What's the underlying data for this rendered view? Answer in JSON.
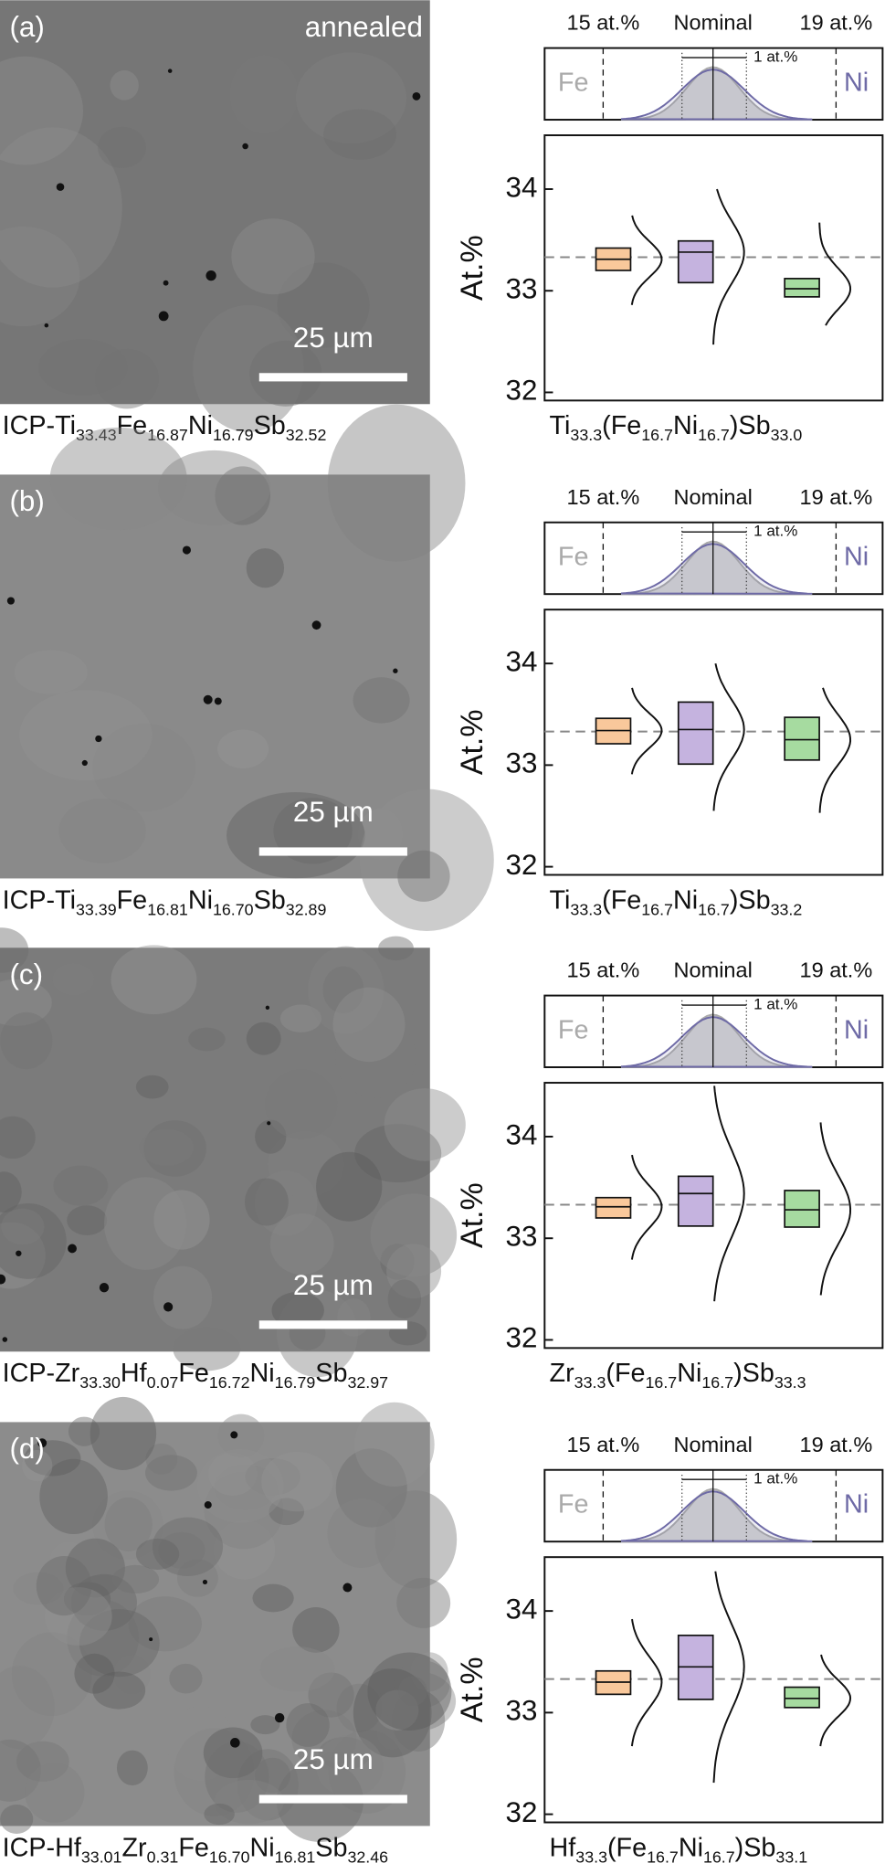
{
  "panels": [
    {
      "label": "(a)",
      "annotation": "annealed",
      "scale_bar": "25 µm",
      "icp_formula": [
        {
          "text": "ICP-Ti",
          "sub": "33.43"
        },
        {
          "text": "Fe",
          "sub": "16.87"
        },
        {
          "text": "Ni",
          "sub": "16.79"
        },
        {
          "text": "Sb",
          "sub": "32.52"
        }
      ],
      "nominal_formula": [
        {
          "text": "Ti",
          "sub": "33.3"
        },
        {
          "text": "(Fe",
          "sub": "16.7"
        },
        {
          "text": "Ni",
          "sub": "16.7"
        },
        {
          "text": ")Sb",
          "sub": "33.0"
        }
      ],
      "inset": {
        "left": "15 at.%",
        "center": "Nominal",
        "right": "19 at.%",
        "left_element": "Fe",
        "right_element": "Ni",
        "width_label": "1 at.%"
      }
    },
    {
      "label": "(b)",
      "scale_bar": "25 µm",
      "icp_formula": [
        {
          "text": "ICP-Ti",
          "sub": "33.39"
        },
        {
          "text": "Fe",
          "sub": "16.81"
        },
        {
          "text": "Ni",
          "sub": "16.70"
        },
        {
          "text": "Sb",
          "sub": "32.89"
        }
      ],
      "nominal_formula": [
        {
          "text": "Ti",
          "sub": "33.3"
        },
        {
          "text": "(Fe",
          "sub": "16.7"
        },
        {
          "text": "Ni",
          "sub": "16.7"
        },
        {
          "text": ")Sb",
          "sub": "33.2"
        }
      ],
      "inset": {
        "left": "15 at.%",
        "center": "Nominal",
        "right": "19 at.%",
        "left_element": "Fe",
        "right_element": "Ni",
        "width_label": "1 at.%"
      }
    },
    {
      "label": "(c)",
      "scale_bar": "25 µm",
      "icp_formula": [
        {
          "text": "ICP-Zr",
          "sub": "33.30"
        },
        {
          "text": "Hf",
          "sub": "0.07"
        },
        {
          "text": "Fe",
          "sub": "16.72"
        },
        {
          "text": "Ni",
          "sub": "16.79"
        },
        {
          "text": "Sb",
          "sub": "32.97"
        }
      ],
      "nominal_formula": [
        {
          "text": "Zr",
          "sub": "33.3"
        },
        {
          "text": "(Fe",
          "sub": "16.7"
        },
        {
          "text": "Ni",
          "sub": "16.7"
        },
        {
          "text": ")Sb",
          "sub": "33.3"
        }
      ],
      "inset": {
        "left": "15 at.%",
        "center": "Nominal",
        "right": "19 at.%",
        "left_element": "Fe",
        "right_element": "Ni",
        "width_label": "1 at.%"
      }
    },
    {
      "label": "(d)",
      "scale_bar": "25 µm",
      "icp_formula": [
        {
          "text": "ICP-Hf",
          "sub": "33.01"
        },
        {
          "text": "Zr",
          "sub": "0.31"
        },
        {
          "text": "Fe",
          "sub": "16.70"
        },
        {
          "text": "Ni",
          "sub": "16.81"
        },
        {
          "text": "Sb",
          "sub": "32.46"
        }
      ],
      "nominal_formula": [
        {
          "text": "Hf",
          "sub": "33.3"
        },
        {
          "text": "(Fe",
          "sub": "16.7"
        },
        {
          "text": "Ni",
          "sub": "16.7"
        },
        {
          "text": ")Sb",
          "sub": "33.1"
        }
      ],
      "inset": {
        "left": "15 at.%",
        "center": "Nominal",
        "right": "19 at.%",
        "left_element": "Fe",
        "right_element": "Ni",
        "width_label": "1 at.%"
      }
    }
  ],
  "chart_data": [
    {
      "type": "box",
      "ylabel": "At.%",
      "categories": [
        null,
        null,
        null
      ],
      "ylim": [
        31.92,
        34.53
      ],
      "yticks": [
        32,
        33,
        34
      ],
      "reference": 33.33,
      "boxes": [
        {
          "color": "#f9c89b",
          "q1": 33.2,
          "median": 33.31,
          "q3": 33.42,
          "min": 32.86,
          "max": 33.74
        },
        {
          "color": "#c5b3df",
          "q1": 33.08,
          "median": 33.38,
          "q3": 33.49,
          "min": 32.47,
          "max": 34.0
        },
        {
          "color": "#a6dba0",
          "q1": 32.94,
          "median": 33.02,
          "q3": 33.12,
          "min": 32.66,
          "max": 33.67
        }
      ]
    },
    {
      "type": "box",
      "ylabel": "At.%",
      "categories": [
        null,
        null,
        null
      ],
      "ylim": [
        31.92,
        34.53
      ],
      "yticks": [
        32,
        33,
        34
      ],
      "reference": 33.33,
      "boxes": [
        {
          "color": "#f9c89b",
          "q1": 33.21,
          "median": 33.34,
          "q3": 33.46,
          "min": 32.91,
          "max": 33.76
        },
        {
          "color": "#c5b3df",
          "q1": 33.01,
          "median": 33.35,
          "q3": 33.62,
          "min": 32.55,
          "max": 34.0
        },
        {
          "color": "#a6dba0",
          "q1": 33.05,
          "median": 33.25,
          "q3": 33.47,
          "min": 32.53,
          "max": 33.76
        }
      ]
    },
    {
      "type": "box",
      "ylabel": "At.%",
      "categories": [
        null,
        null,
        null
      ],
      "ylim": [
        31.92,
        34.53
      ],
      "yticks": [
        32,
        33,
        34
      ],
      "reference": 33.33,
      "boxes": [
        {
          "color": "#f9c89b",
          "q1": 33.2,
          "median": 33.31,
          "q3": 33.4,
          "min": 32.79,
          "max": 33.82
        },
        {
          "color": "#c5b3df",
          "q1": 33.12,
          "median": 33.44,
          "q3": 33.61,
          "min": 32.38,
          "max": 34.5
        },
        {
          "color": "#a6dba0",
          "q1": 33.11,
          "median": 33.28,
          "q3": 33.47,
          "min": 32.44,
          "max": 34.14
        }
      ]
    },
    {
      "type": "box",
      "ylabel": "At.%",
      "categories": [
        null,
        null,
        null
      ],
      "ylim": [
        31.92,
        34.53
      ],
      "yticks": [
        32,
        33,
        34
      ],
      "reference": 33.33,
      "boxes": [
        {
          "color": "#f9c89b",
          "q1": 33.18,
          "median": 33.3,
          "q3": 33.41,
          "min": 32.67,
          "max": 33.92
        },
        {
          "color": "#c5b3df",
          "q1": 33.13,
          "median": 33.45,
          "q3": 33.76,
          "min": 32.31,
          "max": 34.39
        },
        {
          "color": "#a6dba0",
          "q1": 33.05,
          "median": 33.14,
          "q3": 33.25,
          "min": 32.67,
          "max": 33.57
        }
      ]
    }
  ]
}
